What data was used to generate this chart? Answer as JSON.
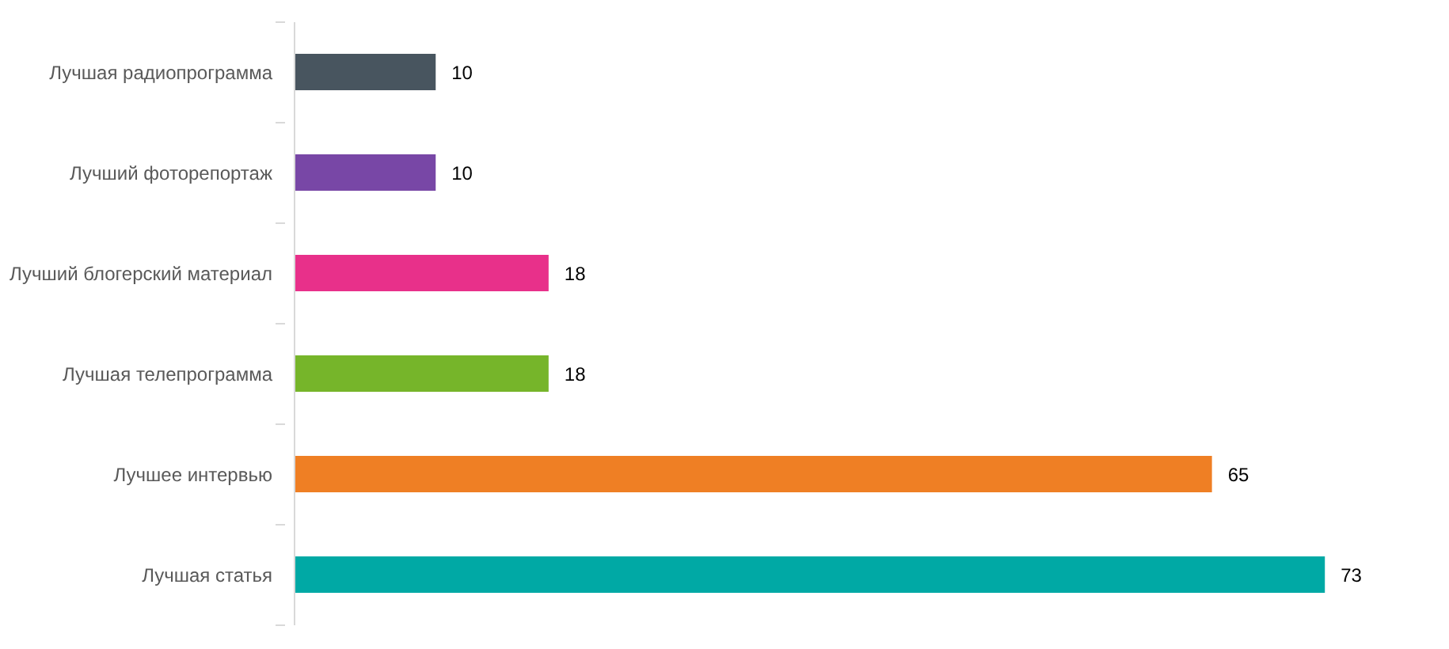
{
  "chart_data": {
    "type": "bar",
    "orientation": "horizontal",
    "categories": [
      "Лучшая радиопрограмма",
      "Лучший фоторепортаж",
      "Лучший блогерский материал",
      "Лучшая телепрограмма",
      "Лучшее интервью",
      "Лучшая статья"
    ],
    "values": [
      10,
      10,
      18,
      18,
      65,
      73
    ],
    "colors": [
      "#48555f",
      "#7847a6",
      "#e8308a",
      "#76b52a",
      "#ef7f24",
      "#00a9a5"
    ],
    "data_labels": true
  }
}
